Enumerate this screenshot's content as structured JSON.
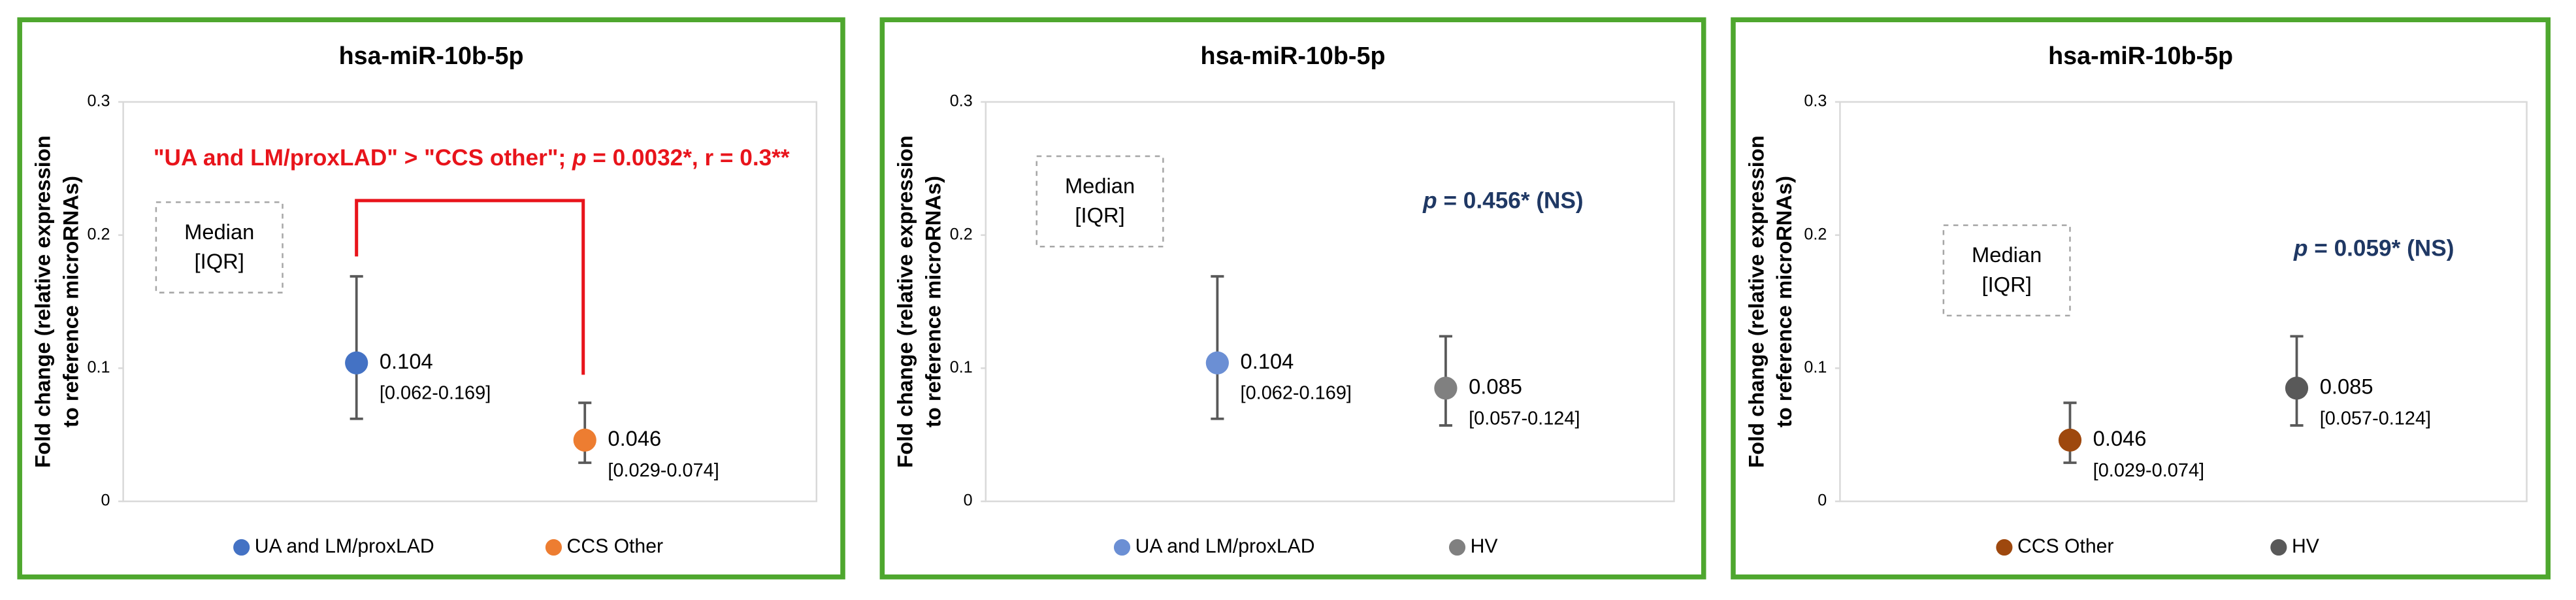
{
  "chart_data": [
    {
      "type": "errorbar",
      "title": "hsa-miR-10b-5p",
      "y_label": [
        "Fold change (relative expression",
        "to reference microRNAs)"
      ],
      "ylim": [
        0,
        0.3
      ],
      "yticks": [
        0,
        0.1,
        0.2,
        0.3
      ],
      "box_text": [
        "Median",
        "[IQR]"
      ],
      "annotation": [
        "\"UA and LM/proxLAD\" > \"CCS other\"; ",
        "p",
        " = 0.0032*, r = 0.3**"
      ],
      "annotation_color": "#e8141b",
      "series": [
        {
          "name": "UA and LM/proxLAD",
          "color": "#4472c4",
          "values": [
            0.104
          ],
          "low": [
            0.062
          ],
          "high": [
            0.169
          ],
          "range_labels": [
            "[0.062-0.169]"
          ]
        },
        {
          "name": "CCS Other",
          "color": "#ed7d31",
          "values": [
            0.046
          ],
          "low": [
            0.029
          ],
          "high": [
            0.074
          ],
          "range_labels": [
            "[0.029-0.074]"
          ]
        }
      ]
    },
    {
      "type": "errorbar",
      "title": "hsa-miR-10b-5p",
      "y_label": [
        "Fold change (relative expression",
        "to reference microRNAs)"
      ],
      "ylim": [
        0,
        0.3
      ],
      "yticks": [
        0,
        0.1,
        0.2,
        0.3
      ],
      "box_text": [
        "Median",
        "[IQR]"
      ],
      "annotation": [
        "",
        "p",
        " = 0.456* (NS)"
      ],
      "annotation_color": "#1f3864",
      "series": [
        {
          "name": "UA and LM/proxLAD",
          "color": "#6b8fd4",
          "values": [
            0.104
          ],
          "low": [
            0.062
          ],
          "high": [
            0.169
          ],
          "range_labels": [
            "[0.062-0.169]"
          ]
        },
        {
          "name": "HV",
          "color": "#808080",
          "values": [
            0.085
          ],
          "low": [
            0.057
          ],
          "high": [
            0.124
          ],
          "range_labels": [
            "[0.057-0.124]"
          ]
        }
      ]
    },
    {
      "type": "errorbar",
      "title": "hsa-miR-10b-5p",
      "y_label": [
        "Fold change (relative expression",
        "to reference microRNAs)"
      ],
      "ylim": [
        0,
        0.3
      ],
      "yticks": [
        0,
        0.1,
        0.2,
        0.3
      ],
      "box_text": [
        "Median",
        "[IQR]"
      ],
      "annotation": [
        "",
        "p",
        " = 0.059* (NS)"
      ],
      "annotation_color": "#1f3864",
      "series": [
        {
          "name": "CCS Other",
          "color": "#9e480e",
          "values": [
            0.046
          ],
          "low": [
            0.029
          ],
          "high": [
            0.074
          ],
          "range_labels": [
            "[0.029-0.074]"
          ]
        },
        {
          "name": "HV",
          "color": "#595959",
          "values": [
            0.085
          ],
          "low": [
            0.057
          ],
          "high": [
            0.124
          ],
          "range_labels": [
            "[0.057-0.124]"
          ]
        }
      ]
    }
  ]
}
